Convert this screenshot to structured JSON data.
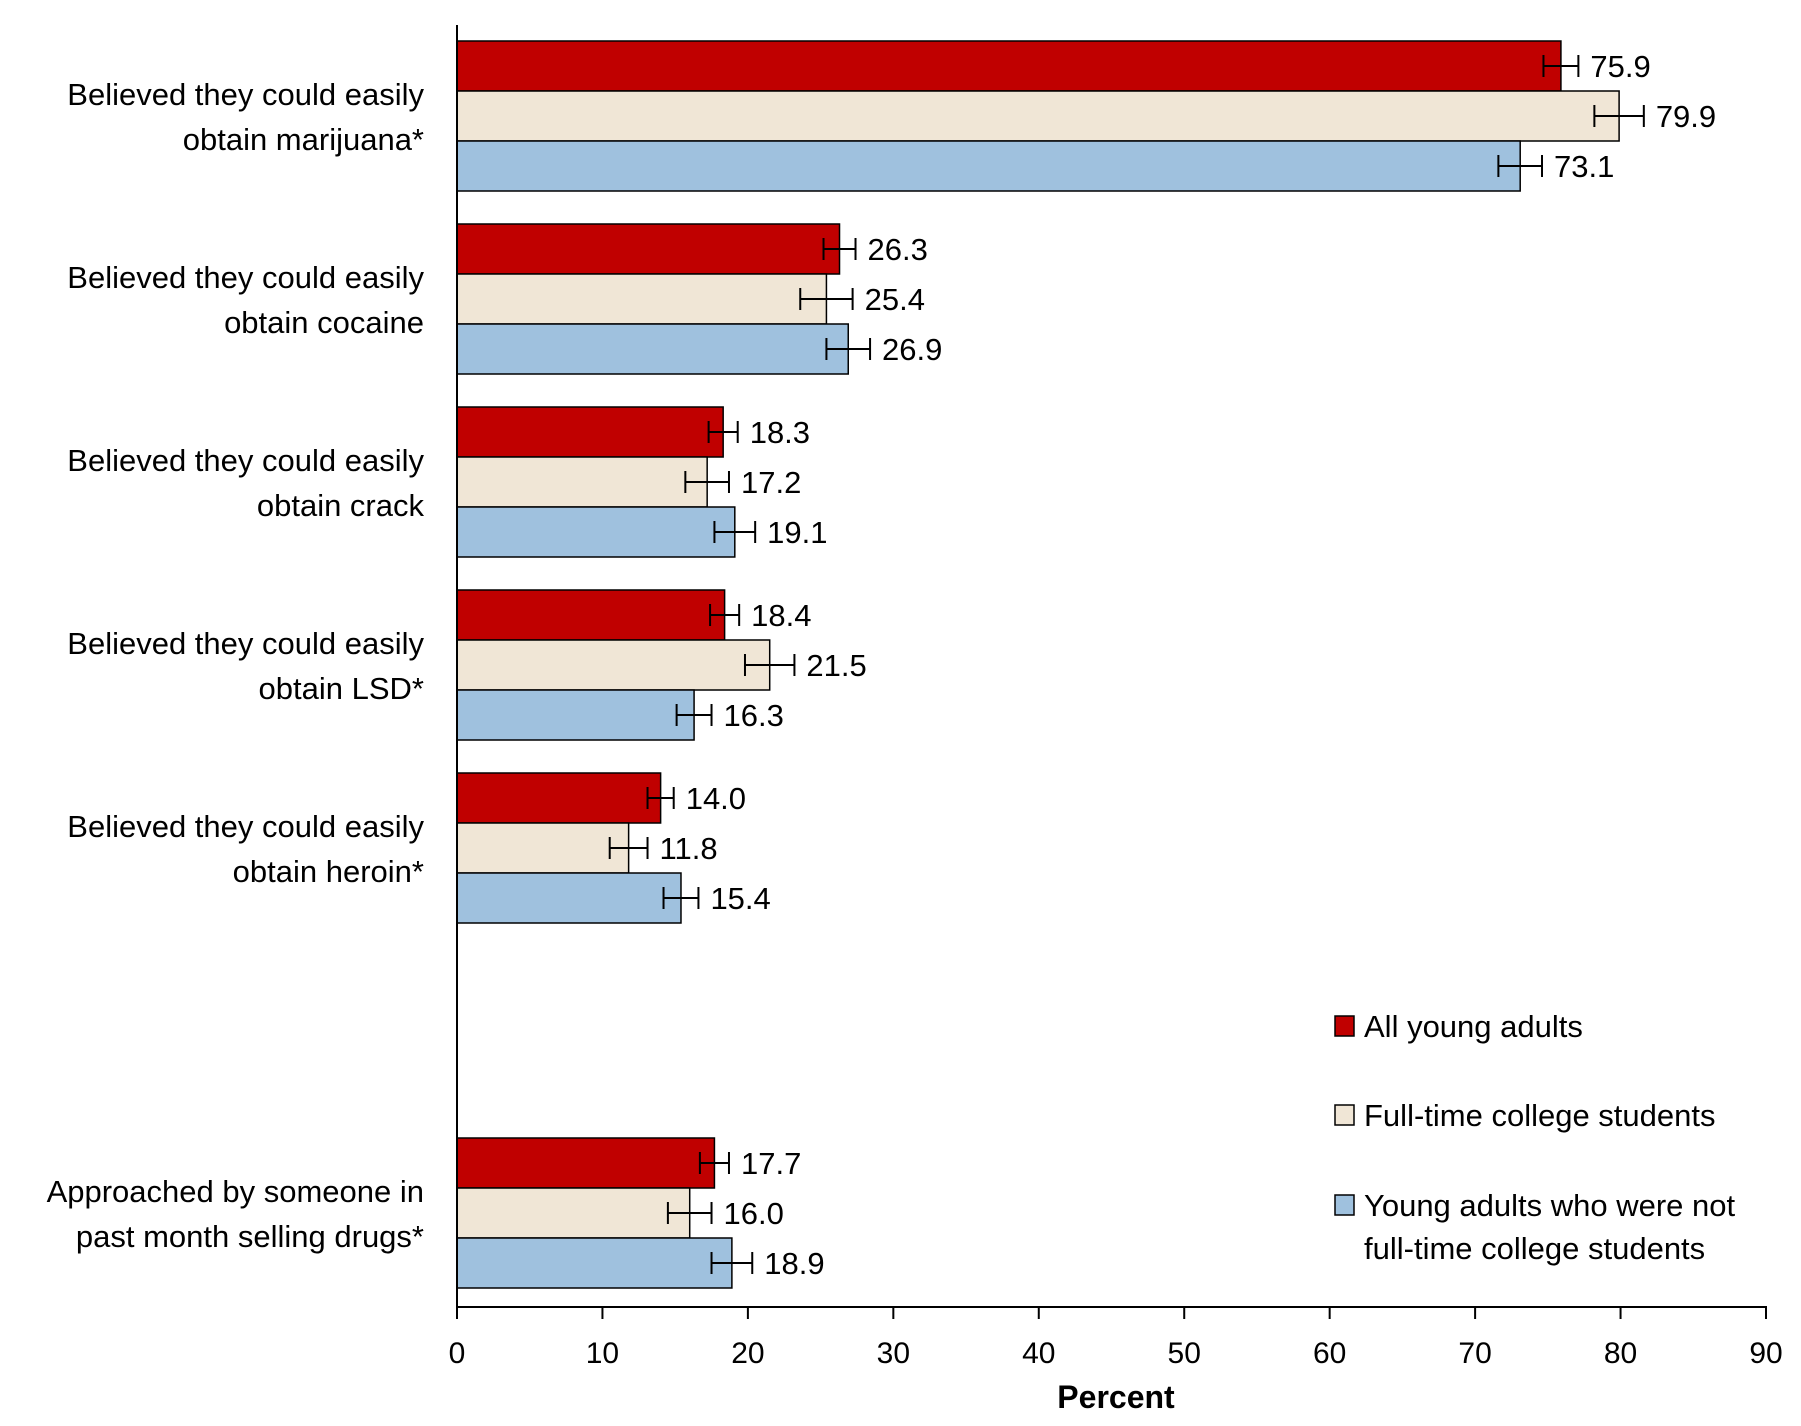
{
  "chart_data": {
    "type": "bar",
    "orientation": "horizontal",
    "title": "",
    "xlabel": "Percent",
    "ylabel": "",
    "xlim": [
      0,
      90
    ],
    "x_ticks": [
      0,
      10,
      20,
      30,
      40,
      50,
      60,
      70,
      80,
      90
    ],
    "grid": false,
    "legend_position": "bottom-right",
    "categories": [
      [
        "Believed they could easily",
        "obtain marijuana*"
      ],
      [
        "Believed they could easily",
        "obtain cocaine"
      ],
      [
        "Believed they could easily",
        "obtain crack"
      ],
      [
        "Believed they could easily",
        "obtain LSD*"
      ],
      [
        "Believed they could easily",
        "obtain heroin*"
      ],
      [
        "Approached by someone in",
        "past month selling drugs*"
      ]
    ],
    "series": [
      {
        "name": "All young adults",
        "color": "#c00000",
        "values": [
          75.9,
          26.3,
          18.3,
          18.4,
          14.0,
          17.7
        ],
        "labels": [
          "75.9",
          "26.3",
          "18.3",
          "18.4",
          "14.0",
          "17.7"
        ],
        "errors": [
          1.2,
          1.1,
          1.0,
          1.0,
          0.9,
          1.0
        ]
      },
      {
        "name": "Full-time college students",
        "color": "#f0e6d6",
        "values": [
          79.9,
          25.4,
          17.2,
          21.5,
          11.8,
          16.0
        ],
        "labels": [
          "79.9",
          "25.4",
          "17.2",
          "21.5",
          "11.8",
          "16.0"
        ],
        "errors": [
          1.7,
          1.8,
          1.5,
          1.7,
          1.3,
          1.5
        ]
      },
      {
        "name": [
          "Young adults who were not",
          "full-time college students"
        ],
        "color": "#9fc1de",
        "values": [
          73.1,
          26.9,
          19.1,
          16.3,
          15.4,
          18.9
        ],
        "labels": [
          "73.1",
          "26.9",
          "19.1",
          "16.3",
          "15.4",
          "18.9"
        ],
        "errors": [
          1.5,
          1.5,
          1.4,
          1.2,
          1.2,
          1.4
        ]
      }
    ]
  }
}
